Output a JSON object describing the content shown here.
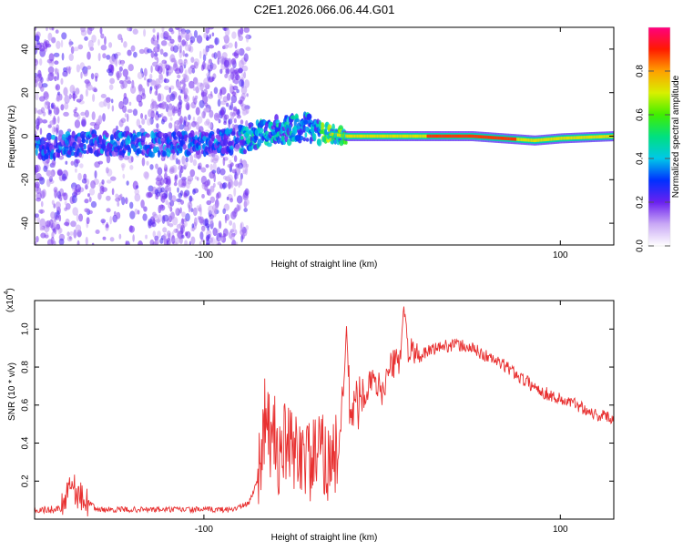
{
  "title": "C2E1.2026.066.06.44.G01",
  "chart_data": [
    {
      "type": "heatmap",
      "xlabel": "Height of straight line (km)",
      "ylabel": "Frequency (Hz)",
      "xlim": [
        -195,
        130
      ],
      "ylim": [
        -50,
        50
      ],
      "xticks": [
        -100,
        100
      ],
      "yticks": [
        -40,
        -20,
        0,
        20,
        40
      ],
      "ridge": [
        [
          -190,
          -5
        ],
        [
          -160,
          -3
        ],
        [
          -130,
          -4
        ],
        [
          -100,
          -3
        ],
        [
          -80,
          -2
        ],
        [
          -70,
          1
        ],
        [
          -55,
          3
        ],
        [
          -40,
          4
        ],
        [
          -30,
          1
        ],
        [
          -20,
          0
        ],
        [
          0,
          0
        ],
        [
          20,
          0
        ],
        [
          50,
          0
        ],
        [
          85,
          -2
        ],
        [
          100,
          -1
        ],
        [
          130,
          0
        ]
      ],
      "colorbar": {
        "label": "Normalized spectral amplitude",
        "range": [
          0,
          1
        ],
        "ticks": [
          0.0,
          0.2,
          0.4,
          0.6,
          0.8
        ],
        "tick_labels": [
          "0.0",
          "0.2",
          "0.4",
          "0.6",
          "0.8"
        ]
      }
    },
    {
      "type": "line",
      "xlabel": "Height of straight line (km)",
      "ylabel": "SNR (10 * v/v)",
      "scale_label": "(x10",
      "scale_exp": "4",
      "xlim": [
        -195,
        130
      ],
      "ylim": [
        0,
        1.15
      ],
      "xticks": [
        -100,
        100
      ],
      "yticks": [
        0.2,
        0.4,
        0.6,
        0.8,
        1.0
      ],
      "ytick_labels": [
        "0.2",
        "0.4",
        "0.6",
        "0.8",
        "1.0"
      ],
      "series": [
        {
          "name": "SNR",
          "color": "#e83030",
          "x": [
            -195,
            -185,
            -180,
            -175,
            -170,
            -165,
            -160,
            -140,
            -120,
            -100,
            -85,
            -75,
            -70,
            -65,
            -62,
            -60,
            -58,
            -55,
            -50,
            -45,
            -40,
            -35,
            -30,
            -25,
            -22,
            -20,
            -18,
            -15,
            -12,
            -8,
            -5,
            0,
            5,
            10,
            12,
            15,
            20,
            30,
            40,
            50,
            60,
            70,
            80,
            90,
            100,
            110,
            120,
            130
          ],
          "values": [
            0.05,
            0.05,
            0.06,
            0.2,
            0.12,
            0.09,
            0.05,
            0.05,
            0.05,
            0.05,
            0.05,
            0.08,
            0.2,
            0.6,
            0.35,
            0.45,
            0.3,
            0.4,
            0.35,
            0.35,
            0.3,
            0.35,
            0.3,
            0.35,
            0.6,
            1.0,
            0.55,
            0.6,
            0.62,
            0.7,
            0.72,
            0.68,
            0.8,
            0.85,
            1.1,
            0.88,
            0.85,
            0.9,
            0.92,
            0.9,
            0.85,
            0.8,
            0.73,
            0.67,
            0.63,
            0.6,
            0.55,
            0.53
          ]
        }
      ]
    }
  ]
}
